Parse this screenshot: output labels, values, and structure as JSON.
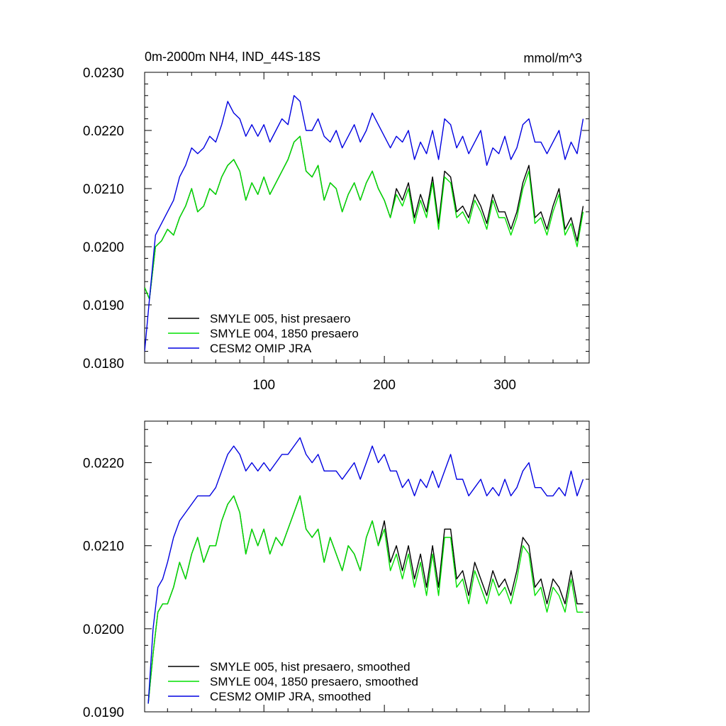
{
  "chart_data": [
    {
      "type": "line",
      "title": "0m-2000m NH4, IND_44S-18S",
      "units_label": "mmol/m^3",
      "xlim": [
        1,
        370
      ],
      "ylim": [
        0.018,
        0.023
      ],
      "x_ticks": [
        100,
        200,
        300
      ],
      "x_tick_labels": [
        "100",
        "200",
        "300"
      ],
      "y_ticks": [
        0.018,
        0.019,
        0.02,
        0.021,
        0.022,
        0.023
      ],
      "y_tick_labels": [
        "0.0180",
        "0.0190",
        "0.0200",
        "0.0210",
        "0.0220",
        "0.0230"
      ],
      "grid": false,
      "legend_position": "bottom-left",
      "series": [
        {
          "name": "SMYLE 005, hist presaero",
          "color": "#000000",
          "x": [
            1,
            5,
            10,
            15,
            20,
            25,
            30,
            35,
            40,
            45,
            50,
            55,
            60,
            65,
            70,
            75,
            80,
            85,
            90,
            95,
            100,
            105,
            110,
            115,
            120,
            125,
            130,
            135,
            140,
            145,
            150,
            155,
            160,
            165,
            170,
            175,
            180,
            185,
            190,
            195,
            200,
            205,
            210,
            215,
            220,
            225,
            230,
            235,
            240,
            245,
            250,
            255,
            260,
            265,
            270,
            275,
            280,
            285,
            290,
            295,
            300,
            305,
            310,
            315,
            320,
            325,
            330,
            335,
            340,
            345,
            350,
            355,
            360,
            365
          ],
          "y": [
            0.0193,
            0.0191,
            0.02,
            0.0201,
            0.0203,
            0.0202,
            0.0205,
            0.0207,
            0.021,
            0.0206,
            0.0207,
            0.021,
            0.0209,
            0.0212,
            0.0214,
            0.0215,
            0.0213,
            0.0208,
            0.0211,
            0.0209,
            0.0212,
            0.0209,
            0.0211,
            0.0213,
            0.0215,
            0.0218,
            0.0219,
            0.0213,
            0.0212,
            0.0214,
            0.0208,
            0.0211,
            0.021,
            0.0206,
            0.0209,
            0.0211,
            0.0208,
            0.0211,
            0.0213,
            0.021,
            0.0208,
            0.0205,
            0.021,
            0.0208,
            0.0211,
            0.0205,
            0.0209,
            0.0206,
            0.0212,
            0.0204,
            0.0213,
            0.0212,
            0.0206,
            0.0207,
            0.0205,
            0.0209,
            0.0207,
            0.0204,
            0.0209,
            0.0206,
            0.0206,
            0.0203,
            0.0206,
            0.0211,
            0.0214,
            0.0205,
            0.0206,
            0.0203,
            0.0207,
            0.021,
            0.0203,
            0.0205,
            0.0201,
            0.0207
          ]
        },
        {
          "name": "SMYLE 004, 1850 presaero",
          "color": "#00e000",
          "x": [
            1,
            5,
            10,
            15,
            20,
            25,
            30,
            35,
            40,
            45,
            50,
            55,
            60,
            65,
            70,
            75,
            80,
            85,
            90,
            95,
            100,
            105,
            110,
            115,
            120,
            125,
            130,
            135,
            140,
            145,
            150,
            155,
            160,
            165,
            170,
            175,
            180,
            185,
            190,
            195,
            200,
            205,
            210,
            215,
            220,
            225,
            230,
            235,
            240,
            245,
            250,
            255,
            260,
            265,
            270,
            275,
            280,
            285,
            290,
            295,
            300,
            305,
            310,
            315,
            320,
            325,
            330,
            335,
            340,
            345,
            350,
            355,
            360,
            365
          ],
          "y": [
            0.0193,
            0.0191,
            0.02,
            0.0201,
            0.0203,
            0.0202,
            0.0205,
            0.0207,
            0.021,
            0.0206,
            0.0207,
            0.021,
            0.0209,
            0.0212,
            0.0214,
            0.0215,
            0.0213,
            0.0208,
            0.0211,
            0.0209,
            0.0212,
            0.0209,
            0.0211,
            0.0213,
            0.0215,
            0.0218,
            0.0219,
            0.0213,
            0.0212,
            0.0214,
            0.0208,
            0.0211,
            0.021,
            0.0206,
            0.0209,
            0.0211,
            0.0208,
            0.0211,
            0.0213,
            0.021,
            0.0208,
            0.0205,
            0.0209,
            0.0207,
            0.021,
            0.0204,
            0.0208,
            0.0205,
            0.0211,
            0.0203,
            0.0212,
            0.0211,
            0.0205,
            0.0206,
            0.0204,
            0.0208,
            0.0206,
            0.0203,
            0.0208,
            0.0205,
            0.0205,
            0.0202,
            0.0205,
            0.021,
            0.0213,
            0.0204,
            0.0205,
            0.0202,
            0.0206,
            0.0209,
            0.0202,
            0.0204,
            0.02,
            0.0206
          ]
        },
        {
          "name": "CESM2 OMIP JRA",
          "color": "#0000e0",
          "x": [
            1,
            5,
            10,
            15,
            20,
            25,
            30,
            35,
            40,
            45,
            50,
            55,
            60,
            65,
            70,
            75,
            80,
            85,
            90,
            95,
            100,
            105,
            110,
            115,
            120,
            125,
            130,
            135,
            140,
            145,
            150,
            155,
            160,
            165,
            170,
            175,
            180,
            185,
            190,
            195,
            200,
            205,
            210,
            215,
            220,
            225,
            230,
            235,
            240,
            245,
            250,
            255,
            260,
            265,
            270,
            275,
            280,
            285,
            290,
            295,
            300,
            305,
            310,
            315,
            320,
            325,
            330,
            335,
            340,
            345,
            350,
            355,
            360,
            365
          ],
          "y": [
            0.0182,
            0.0191,
            0.0202,
            0.0204,
            0.0206,
            0.0208,
            0.0212,
            0.0214,
            0.0217,
            0.0216,
            0.0217,
            0.0219,
            0.0218,
            0.0221,
            0.0225,
            0.0223,
            0.0222,
            0.0219,
            0.0221,
            0.0219,
            0.0221,
            0.0218,
            0.022,
            0.0222,
            0.0221,
            0.0226,
            0.0225,
            0.022,
            0.022,
            0.0222,
            0.0219,
            0.0218,
            0.022,
            0.0217,
            0.0219,
            0.0221,
            0.0218,
            0.022,
            0.0223,
            0.0221,
            0.0219,
            0.0217,
            0.0219,
            0.0218,
            0.022,
            0.0215,
            0.0218,
            0.0216,
            0.022,
            0.0215,
            0.0222,
            0.0221,
            0.0217,
            0.0219,
            0.0216,
            0.0218,
            0.022,
            0.0214,
            0.0217,
            0.0216,
            0.0219,
            0.0215,
            0.0217,
            0.0221,
            0.0222,
            0.0218,
            0.0218,
            0.0216,
            0.0218,
            0.022,
            0.0215,
            0.0218,
            0.0216,
            0.0222
          ]
        }
      ]
    },
    {
      "type": "line",
      "xlim": [
        1,
        370
      ],
      "ylim": [
        0.019,
        0.0225
      ],
      "x_ticks": [
        100,
        200,
        300
      ],
      "x_tick_labels": [],
      "y_ticks": [
        0.019,
        0.02,
        0.021,
        0.022
      ],
      "y_tick_labels": [
        "0.0190",
        "0.0200",
        "0.0210",
        "0.0220"
      ],
      "grid": false,
      "legend_position": "bottom-left",
      "series": [
        {
          "name": "SMYLE 005, hist presaero, smoothed",
          "color": "#000000",
          "x": [
            4,
            8,
            12,
            16,
            20,
            25,
            30,
            35,
            40,
            45,
            50,
            55,
            60,
            65,
            70,
            75,
            80,
            85,
            90,
            95,
            100,
            105,
            110,
            115,
            120,
            125,
            130,
            135,
            140,
            145,
            150,
            155,
            160,
            165,
            170,
            175,
            180,
            185,
            190,
            195,
            200,
            205,
            210,
            215,
            220,
            225,
            230,
            235,
            240,
            245,
            250,
            255,
            260,
            265,
            270,
            275,
            280,
            285,
            290,
            295,
            300,
            305,
            310,
            315,
            320,
            325,
            330,
            335,
            340,
            345,
            350,
            355,
            360,
            365
          ],
          "y": [
            0.0191,
            0.0197,
            0.0202,
            0.0203,
            0.0203,
            0.0205,
            0.0208,
            0.0206,
            0.0209,
            0.0211,
            0.0208,
            0.021,
            0.021,
            0.0213,
            0.0215,
            0.0216,
            0.0214,
            0.0209,
            0.0212,
            0.021,
            0.0212,
            0.0209,
            0.0211,
            0.021,
            0.0212,
            0.0214,
            0.0216,
            0.0212,
            0.0211,
            0.0212,
            0.0208,
            0.0211,
            0.0209,
            0.0207,
            0.021,
            0.0209,
            0.0207,
            0.0211,
            0.0213,
            0.021,
            0.0213,
            0.0208,
            0.021,
            0.0207,
            0.021,
            0.0206,
            0.0209,
            0.0205,
            0.021,
            0.0205,
            0.0212,
            0.0212,
            0.0206,
            0.0207,
            0.0204,
            0.0208,
            0.0206,
            0.0204,
            0.0207,
            0.0205,
            0.0206,
            0.0204,
            0.0207,
            0.0211,
            0.021,
            0.0205,
            0.0206,
            0.0203,
            0.0206,
            0.0205,
            0.0203,
            0.0207,
            0.0203,
            0.0203
          ]
        },
        {
          "name": "SMYLE 004, 1850 presaero, smoothed",
          "color": "#00e000",
          "x": [
            4,
            8,
            12,
            16,
            20,
            25,
            30,
            35,
            40,
            45,
            50,
            55,
            60,
            65,
            70,
            75,
            80,
            85,
            90,
            95,
            100,
            105,
            110,
            115,
            120,
            125,
            130,
            135,
            140,
            145,
            150,
            155,
            160,
            165,
            170,
            175,
            180,
            185,
            190,
            195,
            200,
            205,
            210,
            215,
            220,
            225,
            230,
            235,
            240,
            245,
            250,
            255,
            260,
            265,
            270,
            275,
            280,
            285,
            290,
            295,
            300,
            305,
            310,
            315,
            320,
            325,
            330,
            335,
            340,
            345,
            350,
            355,
            360,
            365
          ],
          "y": [
            0.0191,
            0.0197,
            0.0202,
            0.0203,
            0.0203,
            0.0205,
            0.0208,
            0.0206,
            0.0209,
            0.0211,
            0.0208,
            0.021,
            0.021,
            0.0213,
            0.0215,
            0.0216,
            0.0214,
            0.0209,
            0.0212,
            0.021,
            0.0212,
            0.0209,
            0.0211,
            0.021,
            0.0212,
            0.0214,
            0.0216,
            0.0212,
            0.0211,
            0.0212,
            0.0208,
            0.0211,
            0.0209,
            0.0207,
            0.021,
            0.0209,
            0.0207,
            0.0211,
            0.0213,
            0.021,
            0.0212,
            0.0207,
            0.0209,
            0.0206,
            0.0209,
            0.0205,
            0.0208,
            0.0204,
            0.0209,
            0.0204,
            0.0211,
            0.0211,
            0.0205,
            0.0206,
            0.0203,
            0.0207,
            0.0205,
            0.0203,
            0.0206,
            0.0204,
            0.0205,
            0.0203,
            0.0206,
            0.021,
            0.0209,
            0.0204,
            0.0205,
            0.0202,
            0.0205,
            0.0204,
            0.0202,
            0.0206,
            0.0202,
            0.0202
          ]
        },
        {
          "name": "CESM2 OMIP JRA, smoothed",
          "color": "#0000e0",
          "x": [
            4,
            8,
            12,
            16,
            20,
            25,
            30,
            35,
            40,
            45,
            50,
            55,
            60,
            65,
            70,
            75,
            80,
            85,
            90,
            95,
            100,
            105,
            110,
            115,
            120,
            125,
            130,
            135,
            140,
            145,
            150,
            155,
            160,
            165,
            170,
            175,
            180,
            185,
            190,
            195,
            200,
            205,
            210,
            215,
            220,
            225,
            230,
            235,
            240,
            245,
            250,
            255,
            260,
            265,
            270,
            275,
            280,
            285,
            290,
            295,
            300,
            305,
            310,
            315,
            320,
            325,
            330,
            335,
            340,
            345,
            350,
            355,
            360,
            365
          ],
          "y": [
            0.0191,
            0.02,
            0.0205,
            0.0206,
            0.0208,
            0.0211,
            0.0213,
            0.0214,
            0.0215,
            0.0216,
            0.0216,
            0.0216,
            0.0217,
            0.0219,
            0.0221,
            0.0222,
            0.0221,
            0.0219,
            0.022,
            0.0219,
            0.022,
            0.0219,
            0.022,
            0.0221,
            0.0221,
            0.0222,
            0.0223,
            0.0221,
            0.022,
            0.0221,
            0.0219,
            0.0219,
            0.0219,
            0.0218,
            0.0219,
            0.022,
            0.0218,
            0.022,
            0.0222,
            0.022,
            0.0221,
            0.0219,
            0.0219,
            0.0217,
            0.0218,
            0.0216,
            0.0218,
            0.0217,
            0.0219,
            0.0217,
            0.0219,
            0.0221,
            0.0218,
            0.0218,
            0.0216,
            0.0217,
            0.0218,
            0.0216,
            0.0217,
            0.0216,
            0.0218,
            0.0216,
            0.0217,
            0.0219,
            0.022,
            0.0217,
            0.0217,
            0.0216,
            0.0216,
            0.0217,
            0.0216,
            0.0219,
            0.0216,
            0.0218
          ]
        }
      ]
    }
  ]
}
